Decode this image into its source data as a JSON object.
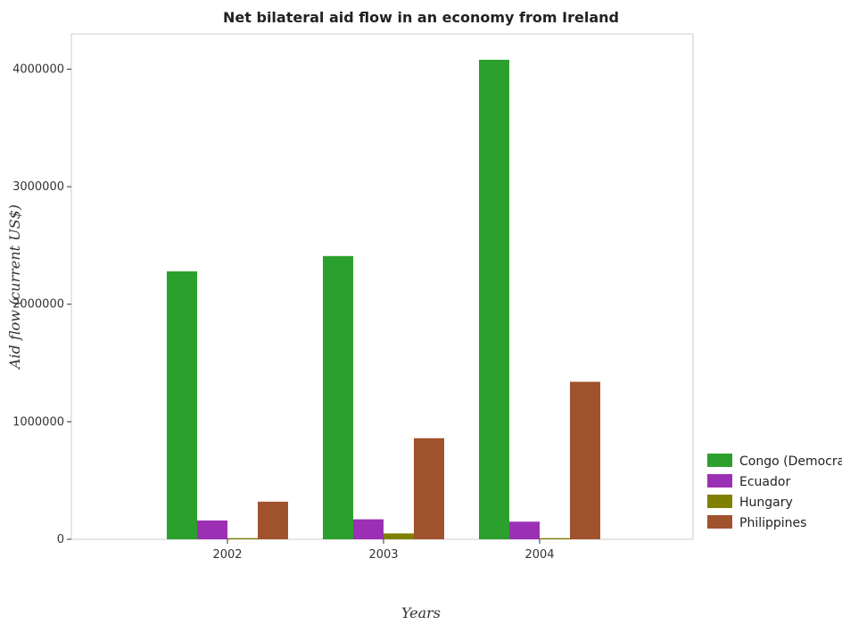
{
  "chart_data": {
    "type": "bar",
    "title": "Net bilateral aid flow in an economy from Ireland",
    "xlabel": "Years",
    "ylabel": "Aid flow (current US$)",
    "categories": [
      "2002",
      "2003",
      "2004"
    ],
    "ylim": [
      0,
      4300000
    ],
    "yticks": [
      0,
      1000000,
      2000000,
      3000000,
      4000000
    ],
    "ytick_labels": [
      "0",
      "1000000",
      "2000000",
      "3000000",
      "4000000"
    ],
    "grid": false,
    "legend_position": "bottom-right",
    "series": [
      {
        "name": "Congo (Democratic)",
        "color": "#2ca02c",
        "values": [
          2280000,
          2410000,
          4080000
        ]
      },
      {
        "name": "Ecuador",
        "color": "#9b30b5",
        "values": [
          160000,
          170000,
          150000
        ]
      },
      {
        "name": "Hungary",
        "color": "#808000",
        "values": [
          10000,
          50000,
          10000
        ]
      },
      {
        "name": "Philippines",
        "color": "#a0522d",
        "values": [
          320000,
          860000,
          1340000
        ]
      }
    ]
  }
}
